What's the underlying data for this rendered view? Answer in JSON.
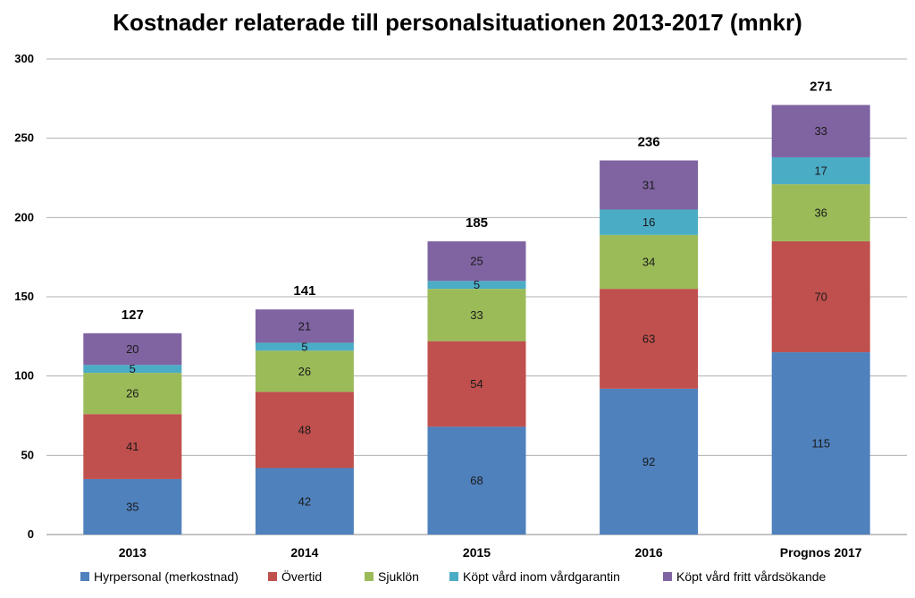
{
  "chart_data": {
    "type": "bar",
    "stacked": true,
    "title": "Kostnader relaterade till personalsituationen 2013-2017 (mnkr)",
    "categories": [
      "2013",
      "2014",
      "2015",
      "2016",
      "Prognos 2017"
    ],
    "series": [
      {
        "name": "Hyrpersonal (merkostnad)",
        "color": "#4f81bd",
        "values": [
          35,
          42,
          68,
          92,
          115
        ]
      },
      {
        "name": "Övertid",
        "color": "#c0504d",
        "values": [
          41,
          48,
          54,
          63,
          70
        ]
      },
      {
        "name": "Sjuklön",
        "color": "#9bbb59",
        "values": [
          26,
          26,
          33,
          34,
          36
        ]
      },
      {
        "name": "Köpt vård inom vårdgarantin",
        "color": "#4bacc6",
        "values": [
          5,
          5,
          5,
          16,
          17
        ]
      },
      {
        "name": "Köpt vård fritt vårdsökande",
        "color": "#8064a2",
        "values": [
          20,
          21,
          25,
          31,
          33
        ]
      }
    ],
    "totals": [
      127,
      141,
      185,
      236,
      271
    ],
    "xlabel": "",
    "ylabel": "",
    "ylim": [
      0,
      300
    ],
    "yticks": [
      0,
      50,
      100,
      150,
      200,
      250,
      300
    ],
    "grid": true,
    "legend_position": "bottom"
  }
}
